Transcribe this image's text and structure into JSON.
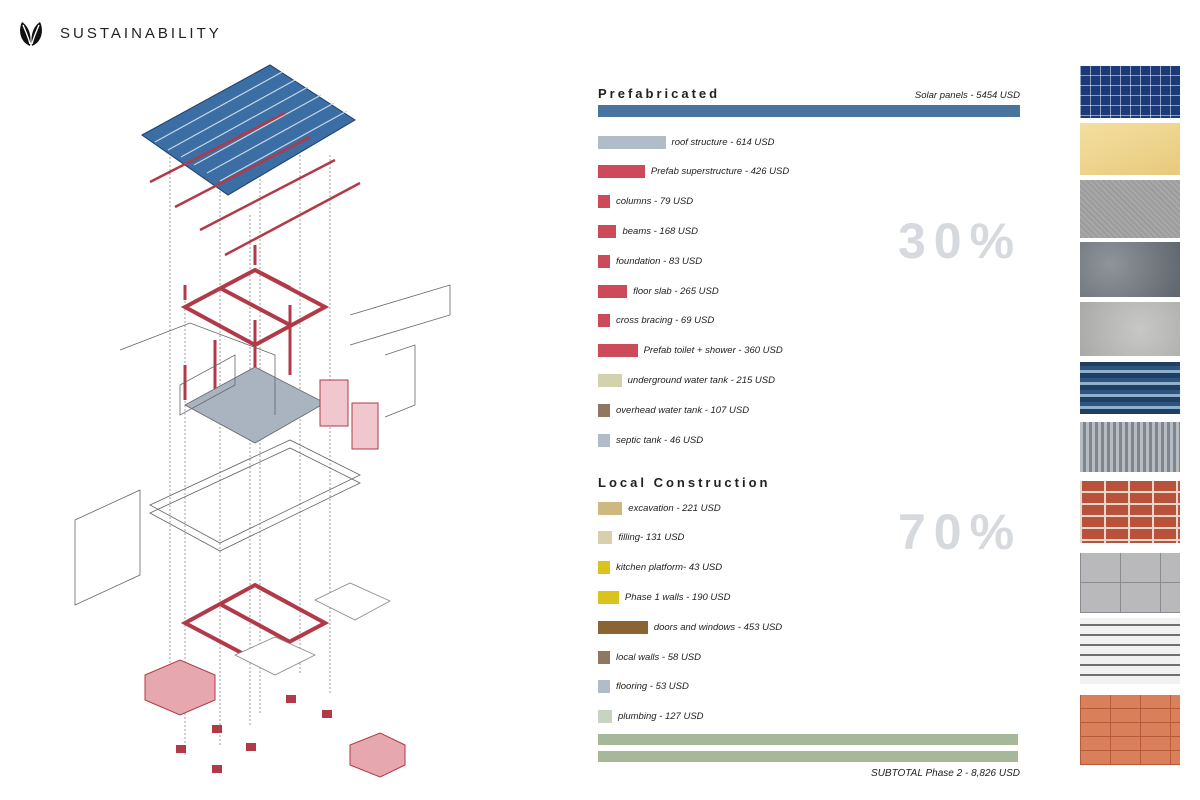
{
  "header": {
    "title": "SUSTAINABILITY",
    "logo_icon": "leaf-icon"
  },
  "prefab": {
    "title": "Prefabricated",
    "solar_label": "Solar panels  - 5454 USD",
    "solar_color": "#4a74a0",
    "percent": "30%",
    "items": [
      {
        "label": "roof structure - 614 USD",
        "color": "#b1bcc8",
        "cost": 614
      },
      {
        "label": "Prefab superstructure - 426 USD",
        "color": "#cc4a5a",
        "cost": 426
      },
      {
        "label": "columns -  79 USD",
        "color": "#cc4a5a",
        "cost": 79
      },
      {
        "label": "beams -  168 USD",
        "color": "#cc4a5a",
        "cost": 168
      },
      {
        "label": "foundation -  83 USD",
        "color": "#cc4a5a",
        "cost": 83
      },
      {
        "label": "floor slab -   265 USD",
        "color": "#cc4a5a",
        "cost": 265
      },
      {
        "label": "cross bracing - 69 USD",
        "color": "#cc4a5a",
        "cost": 69
      },
      {
        "label": "Prefab toilet + shower - 360 USD",
        "color": "#cc4a5a",
        "cost": 360
      },
      {
        "label": "underground water tank - 215 USD",
        "color": "#d3d2ae",
        "cost": 215
      },
      {
        "label": "overhead water tank - 107 USD",
        "color": "#8f7762",
        "cost": 107
      },
      {
        "label": "septic tank - 46 USD",
        "color": "#b1bcc8",
        "cost": 46
      }
    ]
  },
  "local": {
    "title": "Local Construction",
    "percent": "70%",
    "items": [
      {
        "label": "excavation - 221 USD",
        "color": "#cfb780",
        "cost": 221
      },
      {
        "label": "filling- 131 USD",
        "color": "#d8d0ad",
        "cost": 131
      },
      {
        "label": "kitchen platform- 43 USD",
        "color": "#dcc21c",
        "cost": 43
      },
      {
        "label": "Phase 1 walls  -  190 USD",
        "color": "#dcc21c",
        "cost": 190
      },
      {
        "label": "doors and windows - 453 USD",
        "color": "#8a6432",
        "cost": 453
      },
      {
        "label": "local walls - 58 USD",
        "color": "#8f7762",
        "cost": 58
      },
      {
        "label": "flooring - 53 USD",
        "color": "#b1bcc8",
        "cost": 53
      },
      {
        "label": "plumbing - 127 USD",
        "color": "#c8d3c2",
        "cost": 127
      }
    ]
  },
  "subtotal": "SUBTOTAL  Phase 2 - 8,826 USD",
  "textures": [
    {
      "name": "solar-panel-texture-icon"
    },
    {
      "name": "wood-board-texture-icon"
    },
    {
      "name": "fabric-texture-icon"
    },
    {
      "name": "dark-concrete-texture-icon"
    },
    {
      "name": "light-concrete-texture-icon"
    },
    {
      "name": "corrugated-blue-texture-icon"
    },
    {
      "name": "corrugated-metal-texture-icon"
    },
    {
      "name": "red-brick-texture-icon"
    },
    {
      "name": "grey-tile-texture-icon"
    },
    {
      "name": "stone-wall-texture-icon"
    },
    {
      "name": "terracotta-brick-texture-icon"
    }
  ]
}
